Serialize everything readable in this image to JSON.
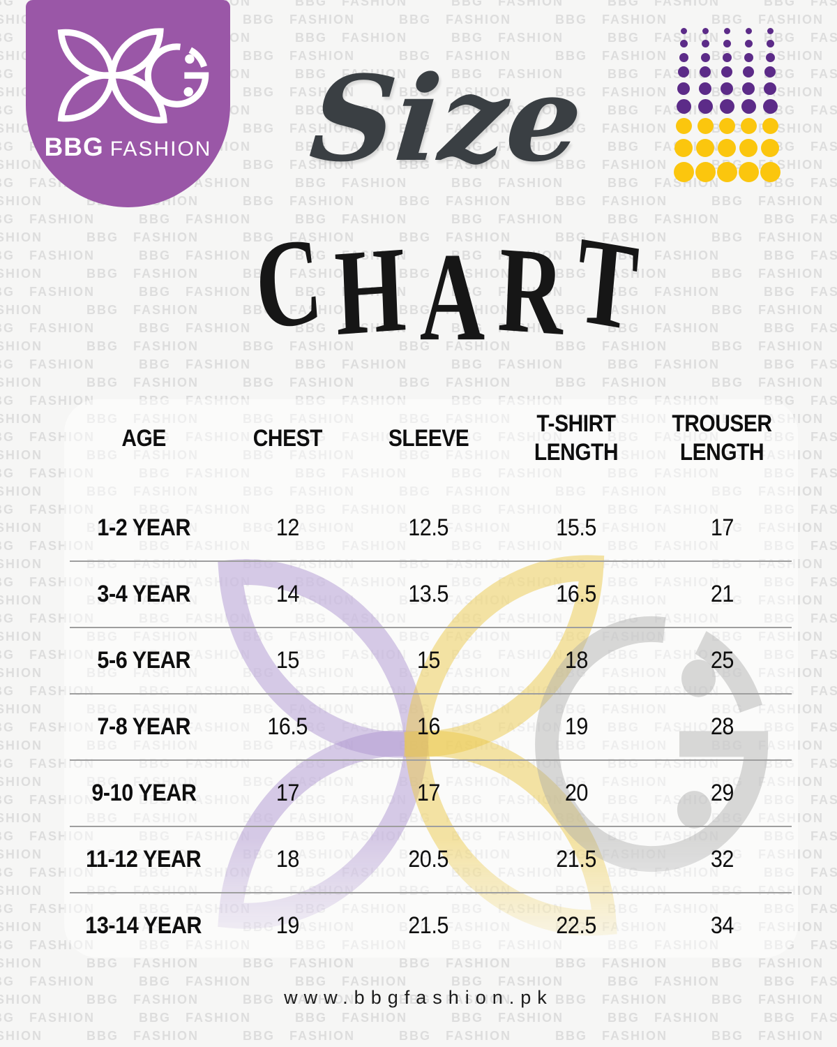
{
  "brand": {
    "name_bold": "BBG",
    "name_rest": "FASHION",
    "badge_color": "#9a57a7",
    "website": "www.bbgfashion.pk"
  },
  "title": {
    "script": "Size",
    "word": "CHART",
    "letters": [
      "C",
      "H",
      "A",
      "R",
      "T"
    ]
  },
  "decor": {
    "watermark_text": "BBG FASHION",
    "dot_purple": "#5c2b88",
    "dot_yellow": "#fbc60e"
  },
  "chart_data": {
    "type": "table",
    "title": "Size Chart",
    "columns": [
      "AGE",
      "CHEST",
      "SLEEVE",
      "T-SHIRT LENGTH",
      "TROUSER LENGTH"
    ],
    "rows": [
      [
        "1-2 YEAR",
        "12",
        "12.5",
        "15.5",
        "17"
      ],
      [
        "3-4 YEAR",
        "14",
        "13.5",
        "16.5",
        "21"
      ],
      [
        "5-6 YEAR",
        "15",
        "15",
        "18",
        "25"
      ],
      [
        "7-8 YEAR",
        "16.5",
        "16",
        "19",
        "28"
      ],
      [
        "9-10 YEAR",
        "17",
        "17",
        "20",
        "29"
      ],
      [
        "11-12 YEAR",
        "18",
        "20.5",
        "21.5",
        "32"
      ],
      [
        "13-14 YEAR",
        "19",
        "21.5",
        "22.5",
        "34"
      ]
    ]
  }
}
